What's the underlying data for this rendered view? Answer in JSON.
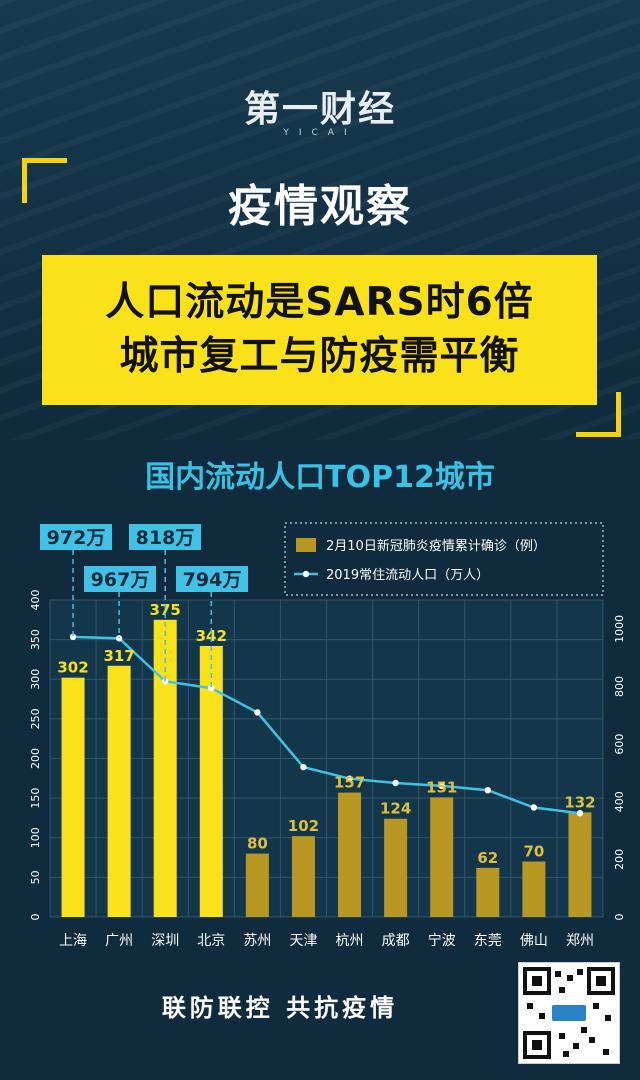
{
  "logo": {
    "main": "第一财经",
    "sub": "YICAI"
  },
  "section_title": "疫情观察",
  "headline": {
    "line1": "人口流动是SARS时6倍",
    "line2": "城市复工与防疫需平衡"
  },
  "chart_title": "国内流动人口TOP12城市",
  "footer": "联防联控  共抗疫情",
  "colors": {
    "accent_yellow": "#fbe11a",
    "bar_gold": "#b89722",
    "line_blue": "#3fc2e6",
    "bg": "#0f2b3d"
  },
  "chart_data": {
    "type": "bar",
    "categories": [
      "上海",
      "广州",
      "深圳",
      "北京",
      "苏州",
      "天津",
      "杭州",
      "成都",
      "宁波",
      "东莞",
      "佛山",
      "郑州"
    ],
    "series": [
      {
        "name": "2月10日新冠肺炎疫情累计确诊（例）",
        "type": "bar",
        "axis": "left",
        "values": [
          302,
          317,
          375,
          342,
          80,
          102,
          157,
          124,
          151,
          62,
          70,
          132
        ]
      },
      {
        "name": "2019常住流动人口（万人）",
        "type": "line",
        "axis": "right",
        "values": [
          972,
          967,
          818,
          794,
          710,
          520,
          480,
          465,
          455,
          440,
          380,
          360
        ]
      }
    ],
    "left_axis": {
      "range": [
        0,
        400
      ],
      "ticks": [
        "0",
        "50",
        "100",
        "150",
        "200",
        "250",
        "300",
        "350",
        "400"
      ]
    },
    "right_axis": {
      "range": [
        0,
        1100
      ],
      "ticks": [
        "0",
        "200",
        "400",
        "600",
        "800",
        "1000"
      ]
    },
    "callouts": [
      "972万",
      "967万",
      "818万",
      "794万"
    ],
    "grid": true,
    "legend": "top-right"
  }
}
